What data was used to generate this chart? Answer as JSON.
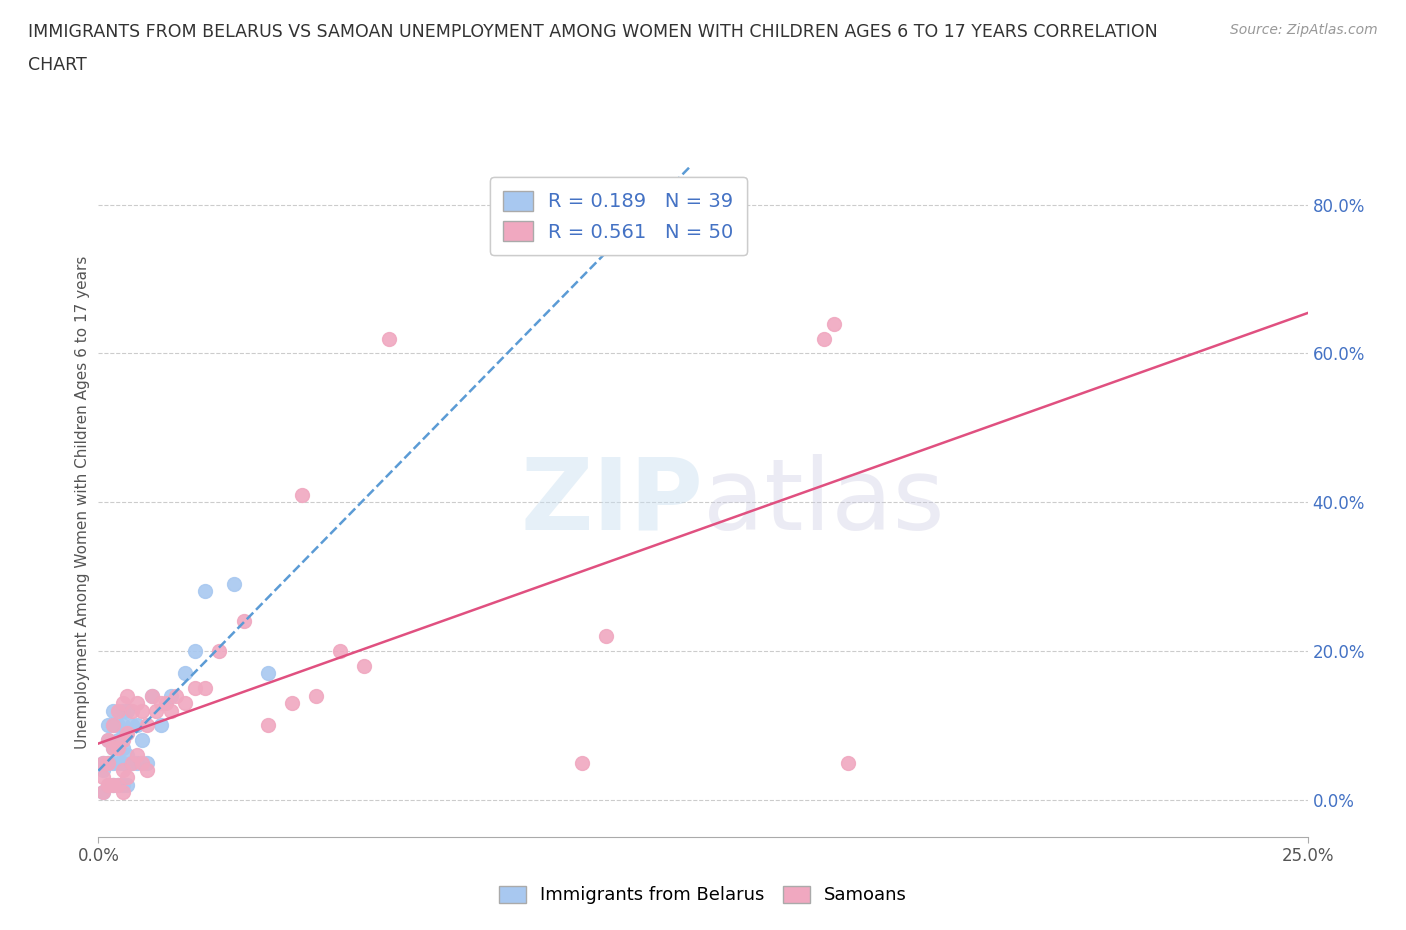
{
  "title_line1": "IMMIGRANTS FROM BELARUS VS SAMOAN UNEMPLOYMENT AMONG WOMEN WITH CHILDREN AGES 6 TO 17 YEARS CORRELATION",
  "title_line2": "CHART",
  "source": "Source: ZipAtlas.com",
  "ylabel": "Unemployment Among Women with Children Ages 6 to 17 years",
  "R_belarus": 0.189,
  "N_belarus": 39,
  "R_samoan": 0.561,
  "N_samoan": 50,
  "color_belarus": "#a8c8f0",
  "color_samoan": "#f0a8c0",
  "line_color_belarus": "#5b9bd5",
  "line_color_samoan": "#e05080",
  "belarus_x": [
    0.001,
    0.001,
    0.001,
    0.002,
    0.002,
    0.002,
    0.002,
    0.003,
    0.003,
    0.003,
    0.003,
    0.003,
    0.004,
    0.004,
    0.004,
    0.004,
    0.005,
    0.005,
    0.005,
    0.005,
    0.005,
    0.006,
    0.006,
    0.006,
    0.006,
    0.007,
    0.007,
    0.008,
    0.008,
    0.009,
    0.01,
    0.011,
    0.013,
    0.015,
    0.018,
    0.02,
    0.022,
    0.028,
    0.035
  ],
  "belarus_y": [
    0.05,
    0.04,
    0.01,
    0.1,
    0.08,
    0.05,
    0.02,
    0.12,
    0.1,
    0.07,
    0.05,
    0.02,
    0.1,
    0.08,
    0.05,
    0.02,
    0.12,
    0.1,
    0.07,
    0.05,
    0.02,
    0.12,
    0.09,
    0.06,
    0.02,
    0.1,
    0.05,
    0.1,
    0.05,
    0.08,
    0.05,
    0.14,
    0.1,
    0.14,
    0.17,
    0.2,
    0.28,
    0.29,
    0.17
  ],
  "samoan_x": [
    0.001,
    0.001,
    0.001,
    0.002,
    0.002,
    0.002,
    0.003,
    0.003,
    0.003,
    0.004,
    0.004,
    0.004,
    0.005,
    0.005,
    0.005,
    0.005,
    0.006,
    0.006,
    0.006,
    0.007,
    0.007,
    0.008,
    0.008,
    0.009,
    0.009,
    0.01,
    0.01,
    0.011,
    0.012,
    0.013,
    0.014,
    0.015,
    0.016,
    0.018,
    0.02,
    0.022,
    0.025,
    0.03,
    0.035,
    0.04,
    0.042,
    0.045,
    0.05,
    0.055,
    0.06,
    0.1,
    0.105,
    0.15,
    0.152,
    0.155
  ],
  "samoan_y": [
    0.05,
    0.03,
    0.01,
    0.08,
    0.05,
    0.02,
    0.1,
    0.07,
    0.02,
    0.12,
    0.07,
    0.02,
    0.13,
    0.08,
    0.04,
    0.01,
    0.14,
    0.09,
    0.03,
    0.12,
    0.05,
    0.13,
    0.06,
    0.12,
    0.05,
    0.1,
    0.04,
    0.14,
    0.12,
    0.13,
    0.13,
    0.12,
    0.14,
    0.13,
    0.15,
    0.15,
    0.2,
    0.24,
    0.1,
    0.13,
    0.41,
    0.14,
    0.2,
    0.18,
    0.62,
    0.05,
    0.22,
    0.62,
    0.64,
    0.05
  ],
  "xlim": [
    0,
    0.25
  ],
  "ylim": [
    -0.05,
    0.85
  ],
  "yticks": [
    0.0,
    0.2,
    0.4,
    0.6,
    0.8
  ],
  "ytick_labels": [
    "0.0%",
    "20.0%",
    "40.0%",
    "60.0%",
    "80.0%"
  ],
  "xtick_labels": [
    "0.0%",
    "25.0%"
  ]
}
